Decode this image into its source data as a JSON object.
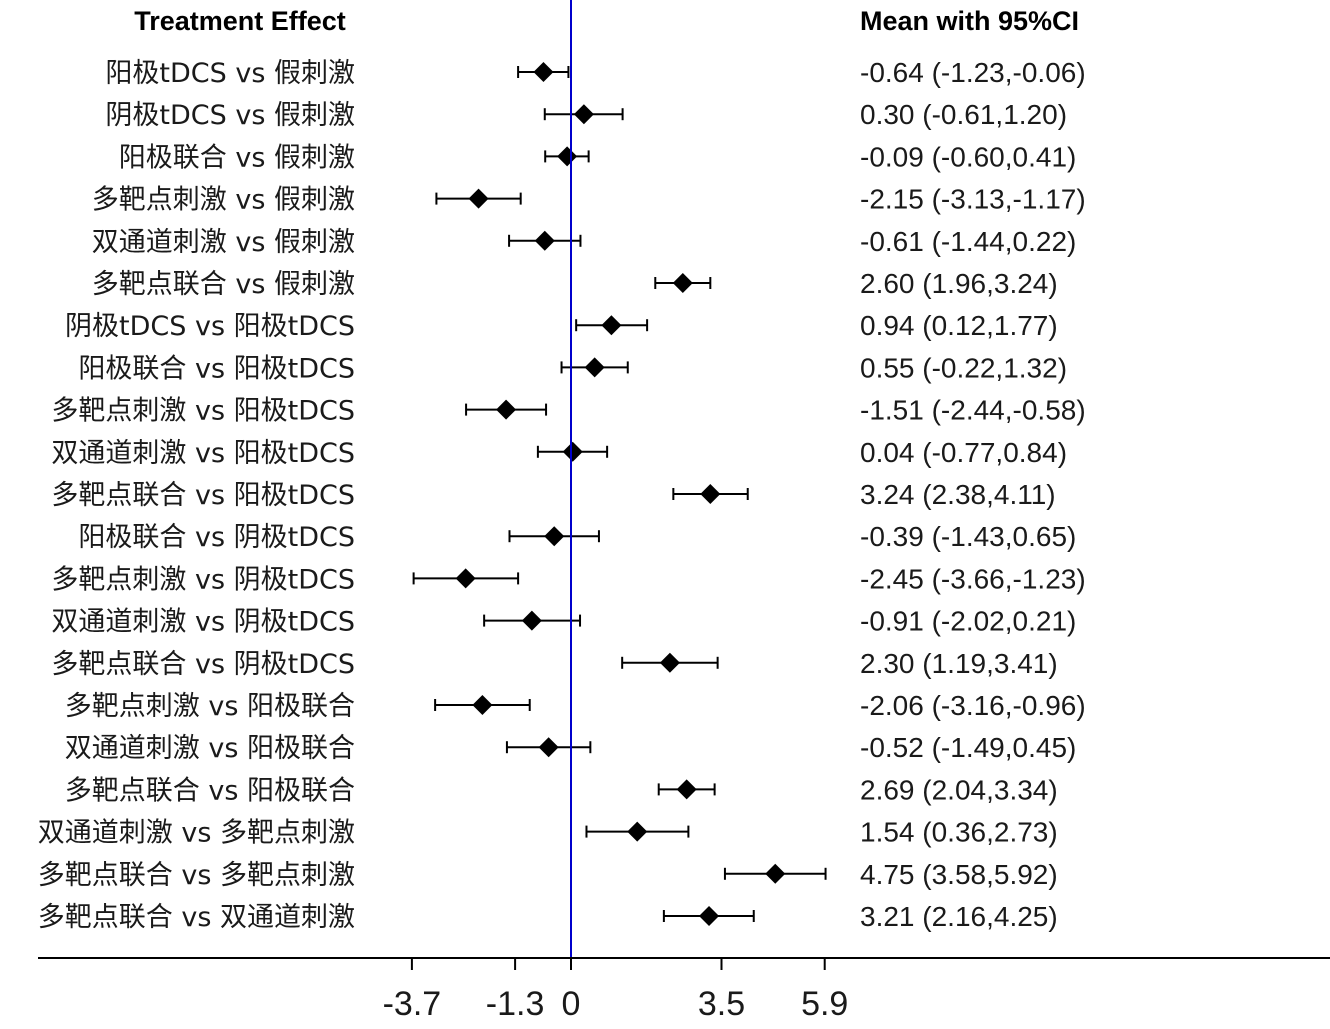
{
  "chart_data": {
    "type": "forest",
    "left_header": "Treatment Effect",
    "right_header": "Mean with 95%CI",
    "x_ticks": [
      -3.7,
      -1.3,
      0,
      3.5,
      5.9
    ],
    "x_tick_labels": [
      "-3.7",
      "-1.3",
      "0",
      "3.5",
      "5.9"
    ],
    "reference_line": 0,
    "reference_color": "#0000cc",
    "marker_color": "#000000",
    "rows": [
      {
        "label": "阳极tDCS vs 假刺激",
        "mean": -0.64,
        "lower": -1.23,
        "upper": -0.06,
        "ci_text": "-0.64 (-1.23,-0.06)"
      },
      {
        "label": "阴极tDCS vs 假刺激",
        "mean": 0.3,
        "lower": -0.61,
        "upper": 1.2,
        "ci_text": "0.30 (-0.61,1.20)"
      },
      {
        "label": "阳极联合 vs 假刺激",
        "mean": -0.09,
        "lower": -0.6,
        "upper": 0.41,
        "ci_text": "-0.09 (-0.60,0.41)"
      },
      {
        "label": "多靶点刺激 vs 假刺激",
        "mean": -2.15,
        "lower": -3.13,
        "upper": -1.17,
        "ci_text": "-2.15 (-3.13,-1.17)"
      },
      {
        "label": "双通道刺激 vs 假刺激",
        "mean": -0.61,
        "lower": -1.44,
        "upper": 0.22,
        "ci_text": "-0.61 (-1.44,0.22)"
      },
      {
        "label": "多靶点联合 vs 假刺激",
        "mean": 2.6,
        "lower": 1.96,
        "upper": 3.24,
        "ci_text": "2.60 (1.96,3.24)"
      },
      {
        "label": "阴极tDCS vs 阳极tDCS",
        "mean": 0.94,
        "lower": 0.12,
        "upper": 1.77,
        "ci_text": "0.94 (0.12,1.77)"
      },
      {
        "label": "阳极联合 vs 阳极tDCS",
        "mean": 0.55,
        "lower": -0.22,
        "upper": 1.32,
        "ci_text": "0.55 (-0.22,1.32)"
      },
      {
        "label": "多靶点刺激 vs 阳极tDCS",
        "mean": -1.51,
        "lower": -2.44,
        "upper": -0.58,
        "ci_text": "-1.51 (-2.44,-0.58)"
      },
      {
        "label": "双通道刺激 vs 阳极tDCS",
        "mean": 0.04,
        "lower": -0.77,
        "upper": 0.84,
        "ci_text": "0.04 (-0.77,0.84)"
      },
      {
        "label": "多靶点联合 vs 阳极tDCS",
        "mean": 3.24,
        "lower": 2.38,
        "upper": 4.11,
        "ci_text": "3.24 (2.38,4.11)"
      },
      {
        "label": "阳极联合 vs 阴极tDCS",
        "mean": -0.39,
        "lower": -1.43,
        "upper": 0.65,
        "ci_text": "-0.39 (-1.43,0.65)"
      },
      {
        "label": "多靶点刺激 vs 阴极tDCS",
        "mean": -2.45,
        "lower": -3.66,
        "upper": -1.23,
        "ci_text": "-2.45 (-3.66,-1.23)"
      },
      {
        "label": "双通道刺激 vs 阴极tDCS",
        "mean": -0.91,
        "lower": -2.02,
        "upper": 0.21,
        "ci_text": "-0.91 (-2.02,0.21)"
      },
      {
        "label": "多靶点联合 vs 阴极tDCS",
        "mean": 2.3,
        "lower": 1.19,
        "upper": 3.41,
        "ci_text": "2.30 (1.19,3.41)"
      },
      {
        "label": "多靶点刺激 vs 阳极联合",
        "mean": -2.06,
        "lower": -3.16,
        "upper": -0.96,
        "ci_text": "-2.06 (-3.16,-0.96)"
      },
      {
        "label": "双通道刺激 vs 阳极联合",
        "mean": -0.52,
        "lower": -1.49,
        "upper": 0.45,
        "ci_text": "-0.52 (-1.49,0.45)"
      },
      {
        "label": "多靶点联合 vs 阳极联合",
        "mean": 2.69,
        "lower": 2.04,
        "upper": 3.34,
        "ci_text": "2.69 (2.04,3.34)"
      },
      {
        "label": "双通道刺激 vs 多靶点刺激",
        "mean": 1.54,
        "lower": 0.36,
        "upper": 2.73,
        "ci_text": "1.54 (0.36,2.73)"
      },
      {
        "label": "多靶点联合 vs 多靶点刺激",
        "mean": 4.75,
        "lower": 3.58,
        "upper": 5.92,
        "ci_text": "4.75 (3.58,5.92)"
      },
      {
        "label": "多靶点联合 vs 双通道刺激",
        "mean": 3.21,
        "lower": 2.16,
        "upper": 4.25,
        "ci_text": "3.21 (2.16,4.25)"
      }
    ]
  }
}
